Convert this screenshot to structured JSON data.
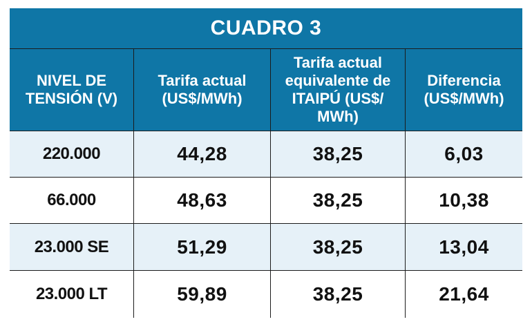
{
  "title": "CUADRO 3",
  "headers": [
    "NIVEL DE TENSIÓN (V)",
    "Tarifa actual (US$/MWh)",
    "Tarifa actual equivalente de ITAIPÚ (US$/ MWh)",
    "Diferencia (US$/MWh)"
  ],
  "rows": [
    {
      "nivel": "220.000",
      "tarifa_actual": "44,28",
      "tarifa_itaipu": "38,25",
      "diferencia": "6,03"
    },
    {
      "nivel": "66.000",
      "tarifa_actual": "48,63",
      "tarifa_itaipu": "38,25",
      "diferencia": "10,38"
    },
    {
      "nivel": "23.000 SE",
      "tarifa_actual": "51,29",
      "tarifa_itaipu": "38,25",
      "diferencia": "13,04"
    },
    {
      "nivel": "23.000 LT",
      "tarifa_actual": "59,89",
      "tarifa_itaipu": "38,25",
      "diferencia": "21,64"
    }
  ],
  "colors": {
    "header_blue": "#0f76a6",
    "row_light": "#e6f1f8",
    "border": "#1b1b1b"
  }
}
